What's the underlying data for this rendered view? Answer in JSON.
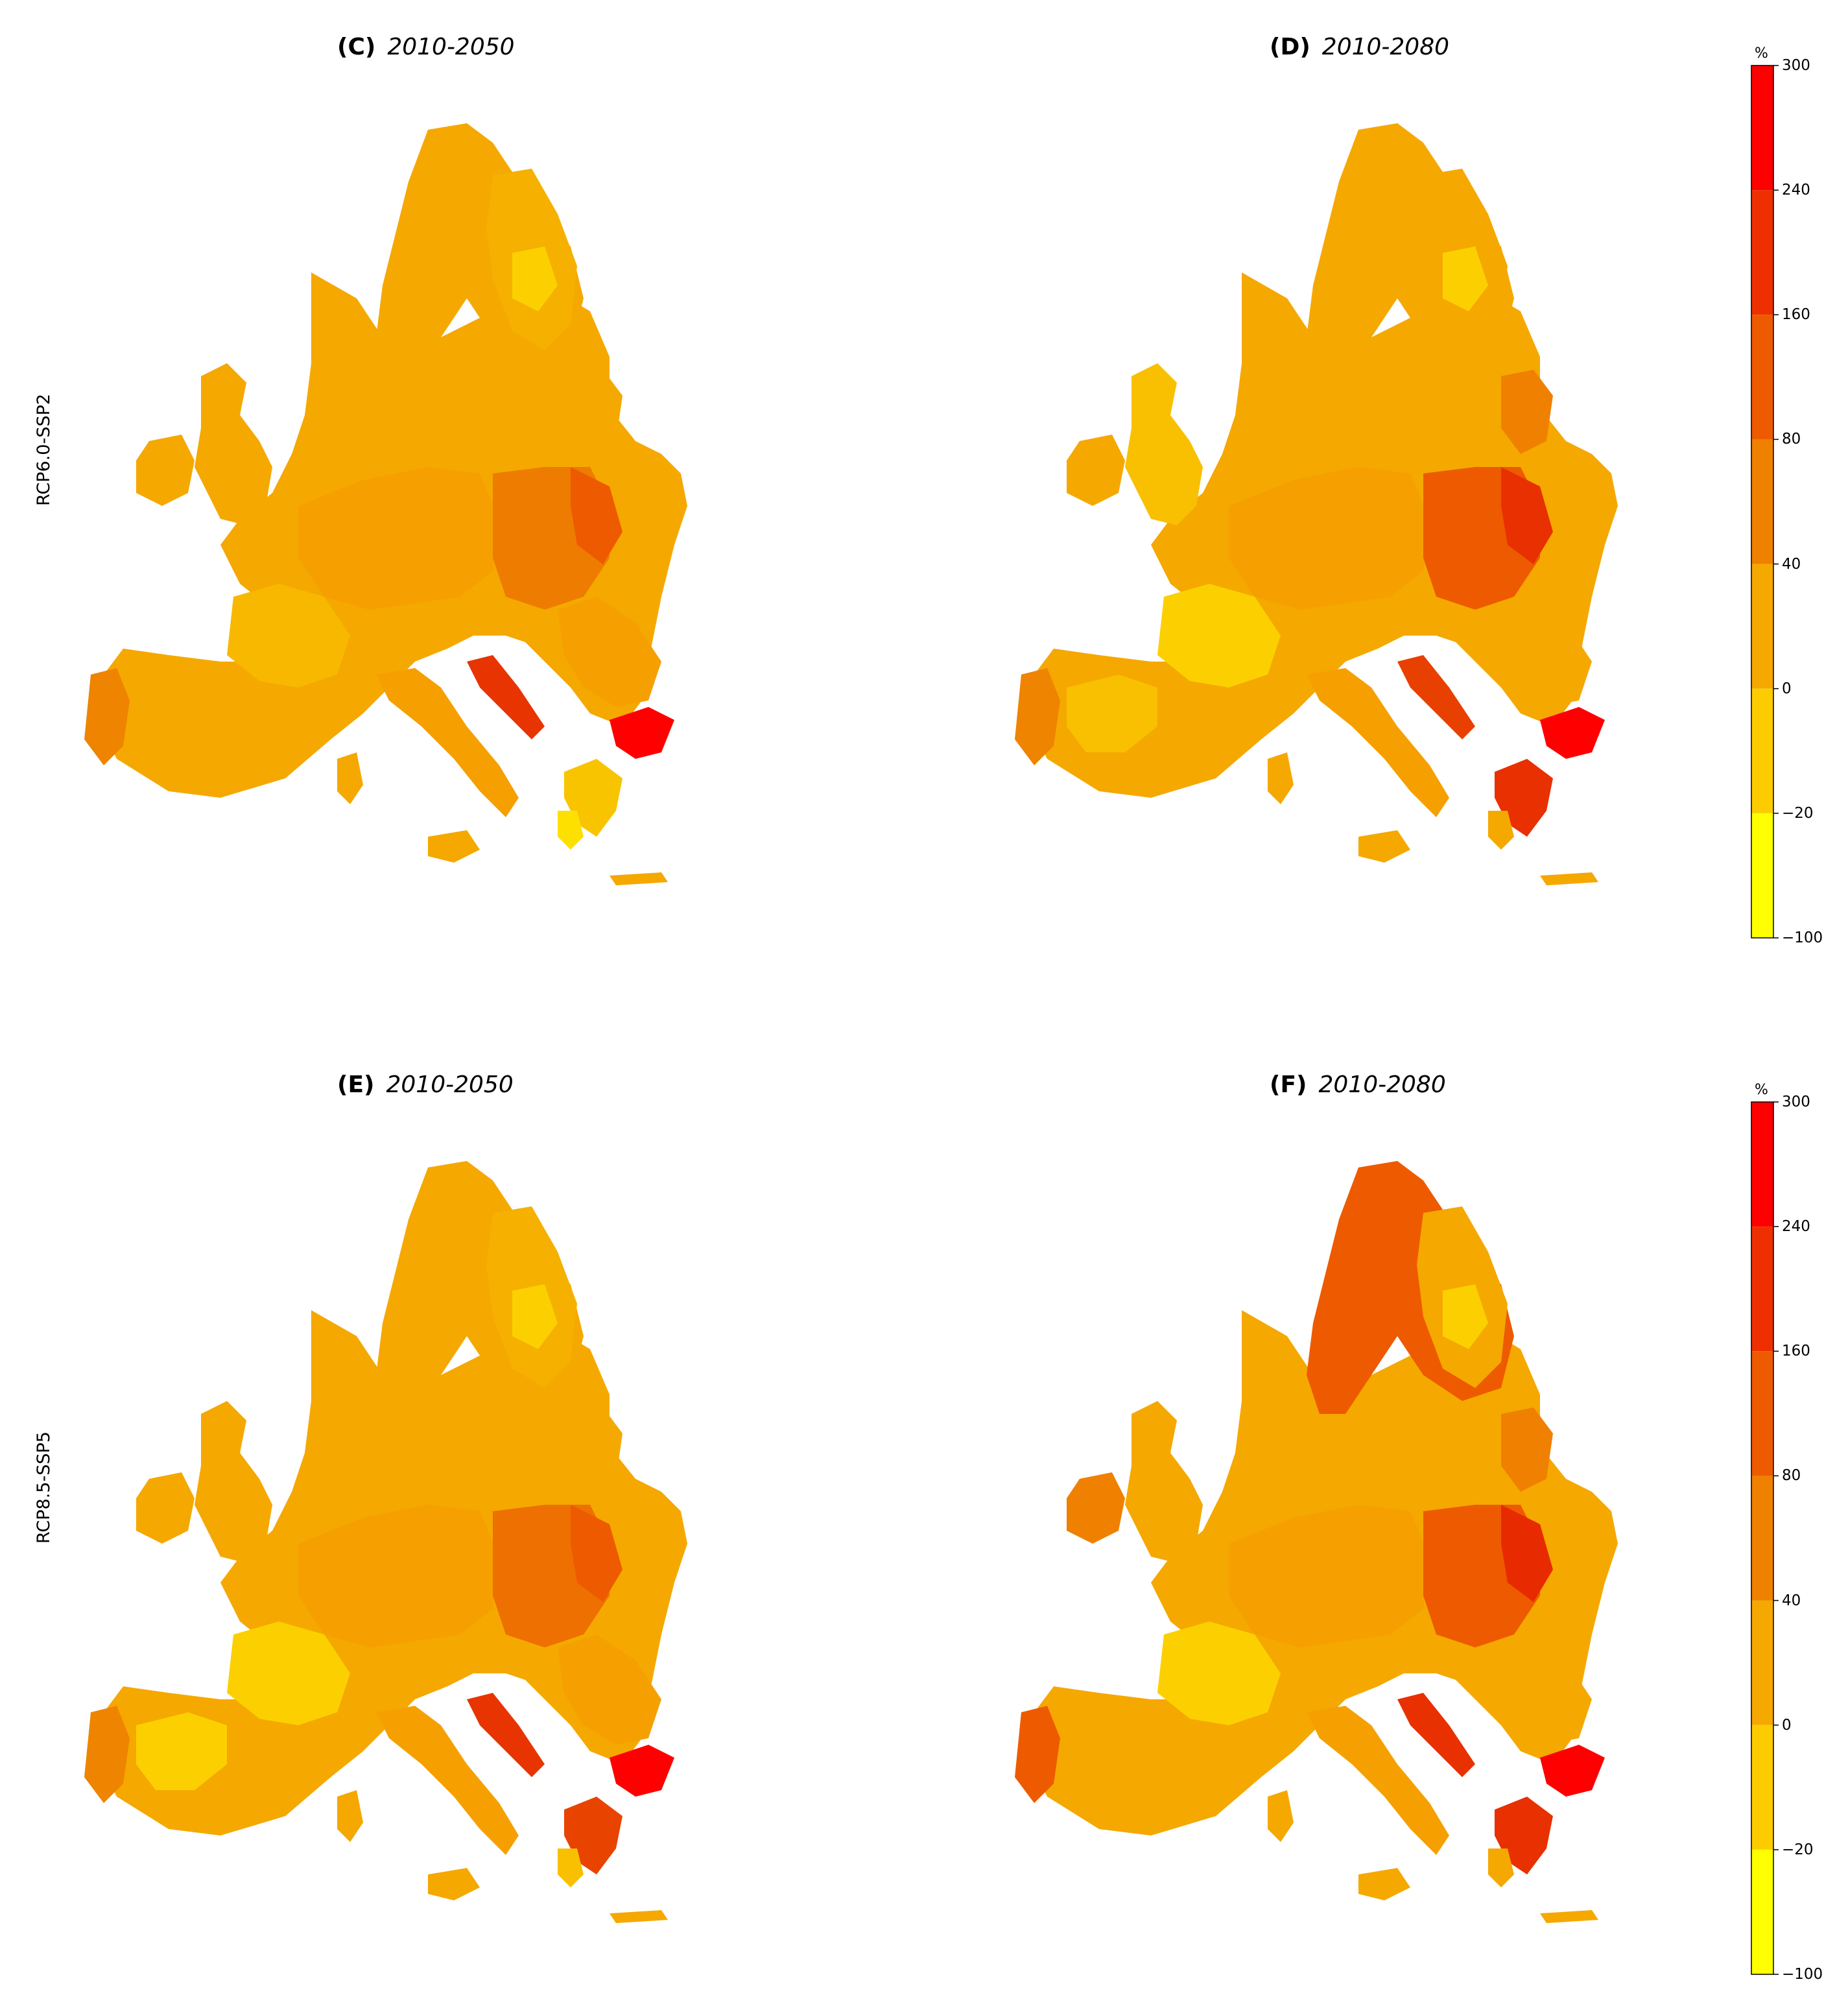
{
  "rows": [
    {
      "label": "RCP6.0-SSP2"
    },
    {
      "label": "RCP8.5-SSP5"
    }
  ],
  "panels": [
    {
      "letter": "(C)",
      "period": "2010-2050",
      "scenario": "RCP6.0-SSP2",
      "fills": {
        "base": "#f5a800",
        "north": "#f5a800",
        "finland": "#f5b000",
        "finland_center": "#fcd000",
        "scot": "#f5a800",
        "ireland": "#f5a800",
        "baltic": "#f5a800",
        "east": "#ee7c00",
        "east_hot": "#ee5a00",
        "central": "#f5a000",
        "france_sw": "#f8b800",
        "iberia_center": "#f5a800",
        "iberia_w": "#ee8400",
        "italy": "#f5a000",
        "balkan": "#f5a000",
        "croatia": "#e83400",
        "bulgaria_se": "#ff0000",
        "greece": "#f8c400",
        "greece_s": "#fde000"
      }
    },
    {
      "letter": "(D)",
      "period": "2010-2080",
      "scenario": "RCP6.0-SSP2",
      "fills": {
        "base": "#f5a800",
        "north": "#f5a800",
        "finland": "#f5a800",
        "finland_center": "#fcd000",
        "scot": "#f8c000",
        "ireland": "#f5a800",
        "baltic": "#f08000",
        "east": "#ee5a00",
        "east_hot": "#e83000",
        "central": "#f5a000",
        "france_sw": "#fcd000",
        "iberia_center": "#f8c000",
        "iberia_w": "#ee8400",
        "italy": "#f5a000",
        "balkan": "#f5a800",
        "croatia": "#e84000",
        "bulgaria_se": "#ff0000",
        "greece": "#e83000",
        "greece_s": "#f5a800"
      }
    },
    {
      "letter": "(E)",
      "period": "2010-2050",
      "scenario": "RCP8.5-SSP5",
      "fills": {
        "base": "#f5a800",
        "north": "#f5a800",
        "finland": "#f5b000",
        "finland_center": "#fcd000",
        "scot": "#f5a800",
        "ireland": "#f5a800",
        "baltic": "#f5a800",
        "east": "#ee7000",
        "east_hot": "#ee5a00",
        "central": "#f5a000",
        "france_sw": "#fcd000",
        "iberia_center": "#fcd000",
        "iberia_w": "#ee8400",
        "italy": "#f5a000",
        "balkan": "#f5a000",
        "croatia": "#e83400",
        "bulgaria_se": "#ff0000",
        "greece": "#e84400",
        "greece_s": "#f8c000"
      }
    },
    {
      "letter": "(F)",
      "period": "2010-2080",
      "scenario": "RCP8.5-SSP5",
      "fills": {
        "base": "#f5a800",
        "north": "#ee5a00",
        "finland": "#f5a800",
        "finland_center": "#fcd000",
        "scot": "#f5a800",
        "ireland": "#f08000",
        "baltic": "#f08000",
        "east": "#ee5a00",
        "east_hot": "#e82a00",
        "central": "#f5a000",
        "france_sw": "#fcd000",
        "iberia_center": "#f5a800",
        "iberia_w": "#ee5a00",
        "italy": "#f5a000",
        "balkan": "#f5a800",
        "croatia": "#e83000",
        "bulgaria_se": "#ff0000",
        "greece": "#e83000",
        "greece_s": "#f5a800"
      }
    }
  ],
  "colorbar": {
    "unit": "%",
    "ticks": [
      "300",
      "240",
      "160",
      "80",
      "40",
      "0",
      "−20",
      "−100"
    ],
    "colors": [
      "#ff0000",
      "#ee3000",
      "#ee5a00",
      "#f08000",
      "#f5a800",
      "#fccc00",
      "#ffff00"
    ]
  }
}
